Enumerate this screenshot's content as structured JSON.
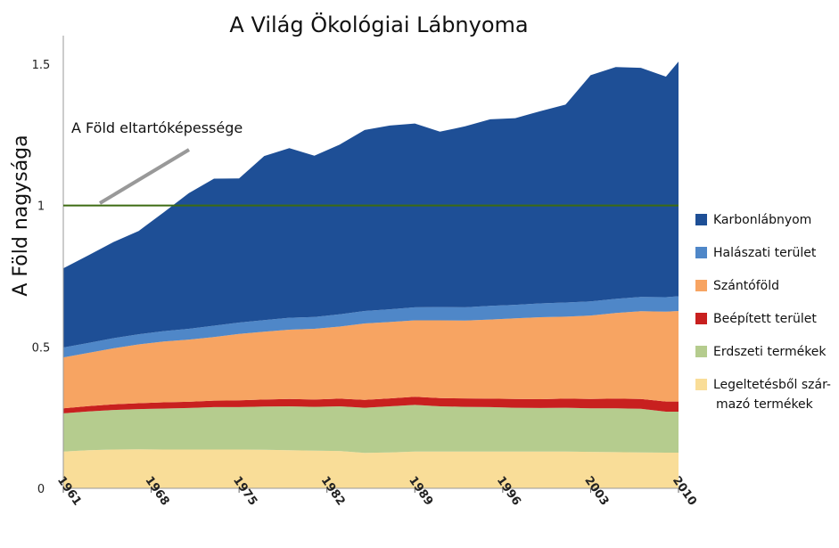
{
  "chart_data": {
    "type": "area",
    "title": "A Világ Ökológiai Lábnyoma",
    "ylabel": "A Föld nagysága",
    "xlabel": "",
    "xlim": [
      1961,
      2010
    ],
    "ylim": [
      0,
      1.55
    ],
    "x_ticks": [
      "1961",
      "1968",
      "1975",
      "1982",
      "1989",
      "1996",
      "2003",
      "2010"
    ],
    "y_ticks": [
      "0",
      "0.5",
      "1",
      "1.5"
    ],
    "y_tick_values": [
      0,
      0.5,
      1,
      1.5
    ],
    "x": [
      1961,
      1963,
      1965,
      1967,
      1969,
      1971,
      1973,
      1975,
      1977,
      1979,
      1981,
      1983,
      1985,
      1987,
      1989,
      1991,
      1993,
      1995,
      1997,
      1999,
      2001,
      2003,
      2005,
      2007,
      2009,
      2010
    ],
    "series": [
      {
        "name": "Legeltetésből származó termékek",
        "color": "#f9dd98",
        "values": [
          0.13,
          0.135,
          0.137,
          0.138,
          0.137,
          0.137,
          0.137,
          0.137,
          0.136,
          0.135,
          0.133,
          0.132,
          0.125,
          0.127,
          0.13,
          0.13,
          0.13,
          0.13,
          0.13,
          0.13,
          0.13,
          0.129,
          0.128,
          0.127,
          0.126,
          0.126
        ]
      },
      {
        "name": "Erdszeti termékek",
        "color": "#b5cc8e",
        "values": [
          0.135,
          0.137,
          0.14,
          0.142,
          0.145,
          0.147,
          0.15,
          0.15,
          0.153,
          0.155,
          0.155,
          0.158,
          0.16,
          0.163,
          0.165,
          0.16,
          0.158,
          0.157,
          0.155,
          0.154,
          0.155,
          0.154,
          0.155,
          0.154,
          0.145,
          0.145
        ]
      },
      {
        "name": "Beépített terület",
        "color": "#c8201f",
        "values": [
          0.018,
          0.019,
          0.02,
          0.021,
          0.022,
          0.022,
          0.023,
          0.024,
          0.025,
          0.026,
          0.026,
          0.027,
          0.028,
          0.028,
          0.029,
          0.029,
          0.03,
          0.03,
          0.031,
          0.031,
          0.032,
          0.033,
          0.034,
          0.035,
          0.036,
          0.036
        ]
      },
      {
        "name": "Szántóföld",
        "color": "#f7a462",
        "values": [
          0.18,
          0.188,
          0.198,
          0.208,
          0.215,
          0.22,
          0.225,
          0.235,
          0.24,
          0.245,
          0.25,
          0.255,
          0.27,
          0.27,
          0.27,
          0.275,
          0.275,
          0.28,
          0.285,
          0.29,
          0.29,
          0.295,
          0.303,
          0.31,
          0.318,
          0.32
        ]
      },
      {
        "name": "Halászati terület",
        "color": "#4f87c8",
        "values": [
          0.035,
          0.035,
          0.036,
          0.036,
          0.037,
          0.038,
          0.04,
          0.04,
          0.041,
          0.042,
          0.042,
          0.043,
          0.044,
          0.045,
          0.046,
          0.047,
          0.047,
          0.048,
          0.048,
          0.049,
          0.05,
          0.05,
          0.05,
          0.051,
          0.051,
          0.052
        ]
      },
      {
        "name": "Karbonlábnyom",
        "color": "#1e4f96",
        "values": [
          0.28,
          0.31,
          0.34,
          0.365,
          0.42,
          0.48,
          0.52,
          0.51,
          0.58,
          0.6,
          0.57,
          0.6,
          0.64,
          0.65,
          0.65,
          0.62,
          0.64,
          0.66,
          0.66,
          0.68,
          0.7,
          0.8,
          0.82,
          0.81,
          0.78,
          0.83
        ]
      }
    ],
    "legend_order": [
      "Karbonlábnyom",
      "Halászati terület",
      "Szántóföld",
      "Beépített terület",
      "Erdszeti termékek",
      "Legeltetésből szár-\nmazó  termékek"
    ],
    "legend_position": "right",
    "reference_line": {
      "value": 1,
      "color": "#3d6b12"
    },
    "annotation": {
      "text": "A Föld eltartóképessége",
      "pointer_color": "#999999"
    },
    "grid": false
  }
}
